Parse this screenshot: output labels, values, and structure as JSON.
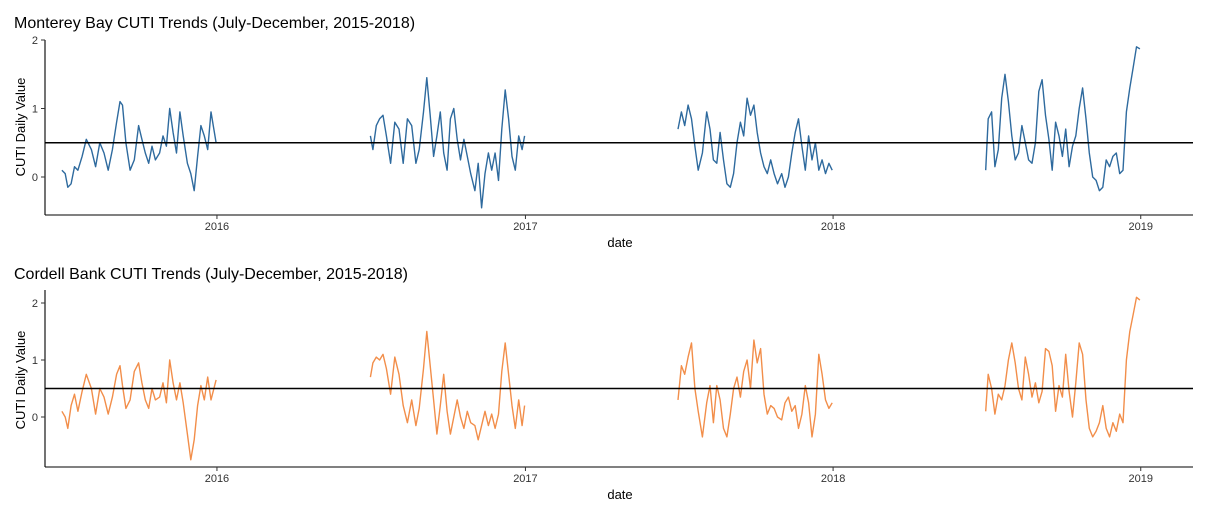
{
  "chart_data": [
    {
      "type": "line",
      "title": "Monterey Bay CUTI Trends (July-December, 2015-2018)",
      "xlabel": "date",
      "ylabel": "CUTI Daily Value",
      "x_ticks": [
        "2016",
        "2017",
        "2018",
        "2019"
      ],
      "y_ticks": [
        "0",
        "1",
        "2"
      ],
      "xlim": [
        "2015-06-11",
        "2019-03-04"
      ],
      "ylim": [
        -0.55,
        2.05
      ],
      "hline": 0.5,
      "grid": false,
      "color": "#2E6A9E",
      "series": [
        {
          "x": [
            "2015-07-01",
            "2015-07-05",
            "2015-07-08",
            "2015-07-12",
            "2015-07-16",
            "2015-07-20",
            "2015-07-25",
            "2015-07-30",
            "2015-08-05",
            "2015-08-10",
            "2015-08-15",
            "2015-08-20",
            "2015-08-25",
            "2015-08-30",
            "2015-09-04",
            "2015-09-08",
            "2015-09-11",
            "2015-09-15",
            "2015-09-20",
            "2015-09-25",
            "2015-09-30",
            "2015-10-04",
            "2015-10-08",
            "2015-10-12",
            "2015-10-16",
            "2015-10-20",
            "2015-10-25",
            "2015-10-29",
            "2015-11-02",
            "2015-11-06",
            "2015-11-10",
            "2015-11-14",
            "2015-11-18",
            "2015-11-22",
            "2015-11-27",
            "2015-12-01",
            "2015-12-05",
            "2015-12-09",
            "2015-12-13",
            "2015-12-17",
            "2015-12-21",
            "2015-12-25",
            "2015-12-31"
          ],
          "y": [
            0.1,
            0.05,
            -0.15,
            -0.1,
            0.15,
            0.1,
            0.3,
            0.55,
            0.4,
            0.15,
            0.5,
            0.35,
            0.1,
            0.4,
            0.8,
            1.1,
            1.05,
            0.5,
            0.1,
            0.25,
            0.75,
            0.55,
            0.35,
            0.2,
            0.45,
            0.25,
            0.35,
            0.6,
            0.45,
            1.0,
            0.65,
            0.35,
            0.95,
            0.6,
            0.2,
            0.05,
            -0.2,
            0.3,
            0.75,
            0.6,
            0.4,
            0.95,
            0.5
          ]
        },
        {
          "x": [
            "2016-07-01",
            "2016-07-04",
            "2016-07-08",
            "2016-07-12",
            "2016-07-16",
            "2016-07-20",
            "2016-07-25",
            "2016-07-30",
            "2016-08-04",
            "2016-08-09",
            "2016-08-14",
            "2016-08-19",
            "2016-08-24",
            "2016-08-28",
            "2016-09-02",
            "2016-09-06",
            "2016-09-10",
            "2016-09-14",
            "2016-09-18",
            "2016-09-22",
            "2016-09-26",
            "2016-09-30",
            "2016-10-04",
            "2016-10-08",
            "2016-10-12",
            "2016-10-16",
            "2016-10-20",
            "2016-10-24",
            "2016-10-28",
            "2016-11-02",
            "2016-11-06",
            "2016-11-10",
            "2016-11-14",
            "2016-11-18",
            "2016-11-22",
            "2016-11-26",
            "2016-11-30",
            "2016-12-04",
            "2016-12-08",
            "2016-12-12",
            "2016-12-16",
            "2016-12-20",
            "2016-12-24",
            "2016-12-28",
            "2016-12-31"
          ],
          "y": [
            0.6,
            0.4,
            0.75,
            0.85,
            0.9,
            0.6,
            0.2,
            0.8,
            0.7,
            0.2,
            0.85,
            0.75,
            0.2,
            0.4,
            0.95,
            1.45,
            0.9,
            0.3,
            0.6,
            0.95,
            0.35,
            0.1,
            0.85,
            1.0,
            0.55,
            0.25,
            0.55,
            0.3,
            0.05,
            -0.2,
            0.2,
            -0.45,
            0.05,
            0.35,
            0.1,
            0.35,
            -0.05,
            0.7,
            1.27,
            0.85,
            0.3,
            0.1,
            0.6,
            0.4,
            0.6
          ]
        },
        {
          "x": [
            "2017-07-01",
            "2017-07-05",
            "2017-07-09",
            "2017-07-13",
            "2017-07-17",
            "2017-07-21",
            "2017-07-25",
            "2017-07-30",
            "2017-08-04",
            "2017-08-08",
            "2017-08-12",
            "2017-08-16",
            "2017-08-20",
            "2017-08-24",
            "2017-08-28",
            "2017-09-01",
            "2017-09-05",
            "2017-09-09",
            "2017-09-13",
            "2017-09-17",
            "2017-09-21",
            "2017-09-25",
            "2017-09-29",
            "2017-10-03",
            "2017-10-07",
            "2017-10-11",
            "2017-10-15",
            "2017-10-19",
            "2017-10-23",
            "2017-10-27",
            "2017-11-01",
            "2017-11-05",
            "2017-11-09",
            "2017-11-13",
            "2017-11-17",
            "2017-11-21",
            "2017-11-25",
            "2017-11-29",
            "2017-12-03",
            "2017-12-07",
            "2017-12-11",
            "2017-12-15",
            "2017-12-19",
            "2017-12-23",
            "2017-12-27",
            "2017-12-31"
          ],
          "y": [
            0.7,
            0.95,
            0.75,
            1.05,
            0.85,
            0.45,
            0.1,
            0.35,
            0.95,
            0.7,
            0.25,
            0.2,
            0.65,
            0.25,
            -0.1,
            -0.15,
            0.05,
            0.5,
            0.8,
            0.6,
            1.15,
            0.9,
            1.05,
            0.65,
            0.35,
            0.15,
            0.05,
            0.25,
            0.05,
            -0.1,
            0.05,
            -0.15,
            0.0,
            0.35,
            0.65,
            0.85,
            0.45,
            0.1,
            0.6,
            0.25,
            0.5,
            0.1,
            0.25,
            0.05,
            0.2,
            0.1
          ]
        },
        {
          "x": [
            "2018-07-01",
            "2018-07-04",
            "2018-07-08",
            "2018-07-12",
            "2018-07-16",
            "2018-07-20",
            "2018-07-24",
            "2018-07-28",
            "2018-08-01",
            "2018-08-05",
            "2018-08-09",
            "2018-08-13",
            "2018-08-17",
            "2018-08-21",
            "2018-08-25",
            "2018-08-29",
            "2018-09-02",
            "2018-09-06",
            "2018-09-10",
            "2018-09-14",
            "2018-09-18",
            "2018-09-22",
            "2018-09-26",
            "2018-09-30",
            "2018-10-04",
            "2018-10-08",
            "2018-10-12",
            "2018-10-16",
            "2018-10-20",
            "2018-10-24",
            "2018-10-28",
            "2018-11-01",
            "2018-11-05",
            "2018-11-09",
            "2018-11-13",
            "2018-11-17",
            "2018-11-21",
            "2018-11-25",
            "2018-11-29",
            "2018-12-03",
            "2018-12-07",
            "2018-12-11",
            "2018-12-15",
            "2018-12-19",
            "2018-12-23",
            "2018-12-27",
            "2018-12-31"
          ],
          "y": [
            0.1,
            0.85,
            0.95,
            0.15,
            0.4,
            1.15,
            1.5,
            1.1,
            0.6,
            0.25,
            0.35,
            0.75,
            0.5,
            0.25,
            0.2,
            0.5,
            1.25,
            1.42,
            0.9,
            0.55,
            0.1,
            0.8,
            0.6,
            0.3,
            0.7,
            0.15,
            0.45,
            0.6,
            1.0,
            1.3,
            0.85,
            0.35,
            0.0,
            -0.05,
            -0.2,
            -0.15,
            0.25,
            0.15,
            0.3,
            0.35,
            0.05,
            0.1,
            0.95,
            1.3,
            1.6,
            1.9,
            1.87
          ]
        }
      ]
    },
    {
      "type": "line",
      "title": "Cordell Bank CUTI Trends (July-December, 2015-2018)",
      "xlabel": "date",
      "ylabel": "CUTI Daily Value",
      "x_ticks": [
        "2016",
        "2017",
        "2018",
        "2019"
      ],
      "y_ticks": [
        "0",
        "1",
        "2"
      ],
      "xlim": [
        "2015-06-11",
        "2019-03-04"
      ],
      "ylim": [
        -0.85,
        2.25
      ],
      "hline": 0.5,
      "grid": false,
      "color": "#F28E4A",
      "series": [
        {
          "x": [
            "2015-07-01",
            "2015-07-05",
            "2015-07-08",
            "2015-07-12",
            "2015-07-16",
            "2015-07-20",
            "2015-07-25",
            "2015-07-30",
            "2015-08-05",
            "2015-08-10",
            "2015-08-15",
            "2015-08-20",
            "2015-08-25",
            "2015-08-30",
            "2015-09-04",
            "2015-09-08",
            "2015-09-11",
            "2015-09-15",
            "2015-09-20",
            "2015-09-25",
            "2015-09-30",
            "2015-10-04",
            "2015-10-08",
            "2015-10-12",
            "2015-10-16",
            "2015-10-20",
            "2015-10-25",
            "2015-10-29",
            "2015-11-02",
            "2015-11-06",
            "2015-11-10",
            "2015-11-14",
            "2015-11-18",
            "2015-11-22",
            "2015-11-27",
            "2015-12-01",
            "2015-12-05",
            "2015-12-09",
            "2015-12-13",
            "2015-12-17",
            "2015-12-21",
            "2015-12-25",
            "2015-12-31"
          ],
          "y": [
            0.1,
            0.0,
            -0.2,
            0.2,
            0.4,
            0.1,
            0.45,
            0.75,
            0.5,
            0.05,
            0.5,
            0.35,
            0.05,
            0.35,
            0.75,
            0.9,
            0.55,
            0.15,
            0.3,
            0.8,
            0.95,
            0.6,
            0.3,
            0.15,
            0.5,
            0.3,
            0.35,
            0.6,
            0.25,
            1.0,
            0.6,
            0.3,
            0.6,
            0.25,
            -0.3,
            -0.75,
            -0.4,
            0.2,
            0.55,
            0.3,
            0.7,
            0.3,
            0.65
          ]
        },
        {
          "x": [
            "2016-07-01",
            "2016-07-04",
            "2016-07-08",
            "2016-07-12",
            "2016-07-16",
            "2016-07-20",
            "2016-07-25",
            "2016-07-30",
            "2016-08-04",
            "2016-08-09",
            "2016-08-14",
            "2016-08-19",
            "2016-08-24",
            "2016-08-28",
            "2016-09-02",
            "2016-09-06",
            "2016-09-10",
            "2016-09-14",
            "2016-09-18",
            "2016-09-22",
            "2016-09-26",
            "2016-09-30",
            "2016-10-04",
            "2016-10-08",
            "2016-10-12",
            "2016-10-16",
            "2016-10-20",
            "2016-10-24",
            "2016-10-28",
            "2016-11-02",
            "2016-11-06",
            "2016-11-10",
            "2016-11-14",
            "2016-11-18",
            "2016-11-22",
            "2016-11-26",
            "2016-11-30",
            "2016-12-04",
            "2016-12-08",
            "2016-12-12",
            "2016-12-16",
            "2016-12-20",
            "2016-12-24",
            "2016-12-28",
            "2016-12-31"
          ],
          "y": [
            0.7,
            0.95,
            1.05,
            1.0,
            1.1,
            0.85,
            0.4,
            1.05,
            0.75,
            0.2,
            -0.1,
            0.3,
            -0.15,
            0.15,
            0.85,
            1.5,
            0.9,
            0.3,
            -0.3,
            0.2,
            0.75,
            0.1,
            -0.3,
            0.0,
            0.3,
            0.0,
            -0.2,
            0.1,
            -0.1,
            -0.15,
            -0.4,
            -0.15,
            0.1,
            -0.15,
            0.05,
            -0.2,
            0.05,
            0.8,
            1.3,
            0.75,
            0.2,
            -0.2,
            0.3,
            -0.15,
            0.2
          ]
        },
        {
          "x": [
            "2017-07-01",
            "2017-07-05",
            "2017-07-09",
            "2017-07-13",
            "2017-07-17",
            "2017-07-21",
            "2017-07-25",
            "2017-07-30",
            "2017-08-04",
            "2017-08-08",
            "2017-08-12",
            "2017-08-16",
            "2017-08-20",
            "2017-08-24",
            "2017-08-28",
            "2017-09-01",
            "2017-09-05",
            "2017-09-09",
            "2017-09-13",
            "2017-09-17",
            "2017-09-21",
            "2017-09-25",
            "2017-09-29",
            "2017-10-03",
            "2017-10-07",
            "2017-10-11",
            "2017-10-15",
            "2017-10-19",
            "2017-10-23",
            "2017-10-27",
            "2017-11-01",
            "2017-11-05",
            "2017-11-09",
            "2017-11-13",
            "2017-11-17",
            "2017-11-21",
            "2017-11-25",
            "2017-11-29",
            "2017-12-03",
            "2017-12-07",
            "2017-12-11",
            "2017-12-15",
            "2017-12-19",
            "2017-12-23",
            "2017-12-27",
            "2017-12-31"
          ],
          "y": [
            0.3,
            0.9,
            0.75,
            1.05,
            1.3,
            0.5,
            0.1,
            -0.35,
            0.25,
            0.55,
            -0.1,
            0.55,
            0.3,
            -0.2,
            -0.35,
            0.05,
            0.5,
            0.7,
            0.35,
            0.8,
            1.0,
            0.5,
            1.35,
            0.95,
            1.2,
            0.4,
            0.05,
            0.2,
            0.15,
            0.0,
            -0.05,
            0.25,
            0.35,
            0.1,
            0.2,
            -0.2,
            0.05,
            0.55,
            0.25,
            -0.35,
            0.05,
            1.1,
            0.75,
            0.3,
            0.15,
            0.25
          ]
        },
        {
          "x": [
            "2018-07-01",
            "2018-07-04",
            "2018-07-08",
            "2018-07-12",
            "2018-07-16",
            "2018-07-20",
            "2018-07-24",
            "2018-07-28",
            "2018-08-01",
            "2018-08-05",
            "2018-08-09",
            "2018-08-13",
            "2018-08-17",
            "2018-08-21",
            "2018-08-25",
            "2018-08-29",
            "2018-09-02",
            "2018-09-06",
            "2018-09-10",
            "2018-09-14",
            "2018-09-18",
            "2018-09-22",
            "2018-09-26",
            "2018-09-30",
            "2018-10-04",
            "2018-10-08",
            "2018-10-12",
            "2018-10-16",
            "2018-10-20",
            "2018-10-24",
            "2018-10-28",
            "2018-11-01",
            "2018-11-05",
            "2018-11-09",
            "2018-11-13",
            "2018-11-17",
            "2018-11-21",
            "2018-11-25",
            "2018-11-29",
            "2018-12-03",
            "2018-12-07",
            "2018-12-11",
            "2018-12-15",
            "2018-12-19",
            "2018-12-23",
            "2018-12-27",
            "2018-12-31"
          ],
          "y": [
            0.1,
            0.75,
            0.5,
            0.05,
            0.4,
            0.3,
            0.55,
            1.0,
            1.3,
            0.95,
            0.5,
            0.3,
            1.05,
            0.75,
            0.35,
            0.6,
            0.25,
            0.45,
            1.2,
            1.15,
            0.9,
            0.1,
            0.55,
            0.35,
            1.1,
            0.45,
            0.0,
            0.6,
            1.3,
            1.1,
            0.3,
            -0.2,
            -0.35,
            -0.25,
            -0.1,
            0.2,
            -0.2,
            -0.35,
            -0.1,
            -0.25,
            0.05,
            -0.1,
            1.0,
            1.5,
            1.8,
            2.1,
            2.05
          ]
        }
      ]
    }
  ]
}
